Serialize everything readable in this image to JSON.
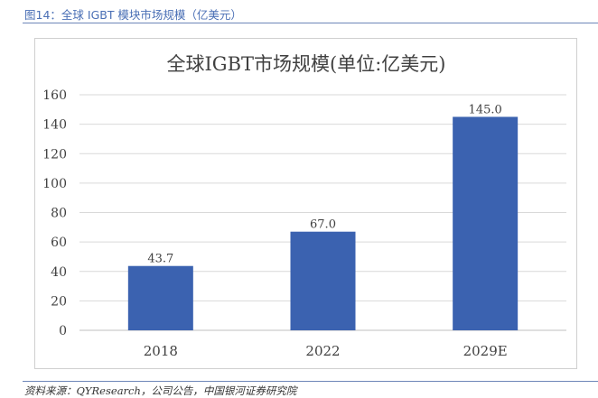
{
  "caption": "图14：全球 IGBT 模块市场规模（亿美元）",
  "source": "资料来源：QYResearch，公司公告，中国银河证券研究院",
  "colors": {
    "bar": "#3b62b0",
    "grid": "#d9d9d9",
    "caption": "#4a6fb5"
  },
  "chart_data": {
    "type": "bar",
    "title": "全球IGBT市场规模(单位:亿美元)",
    "categories": [
      "2018",
      "2022",
      "2029E"
    ],
    "values": [
      43.7,
      67.0,
      145.0
    ],
    "value_labels": [
      "43.7",
      "67.0",
      "145.0"
    ],
    "ylim": [
      0,
      160
    ],
    "yticks": [
      0,
      20,
      40,
      60,
      80,
      100,
      120,
      140,
      160
    ],
    "grid": true,
    "xlabel": "",
    "ylabel": ""
  }
}
